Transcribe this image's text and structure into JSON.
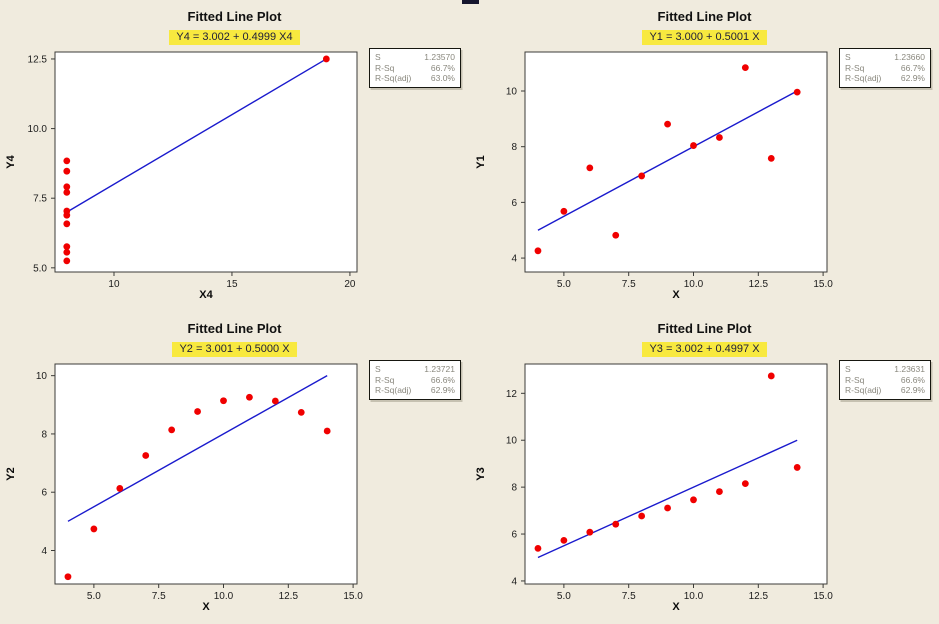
{
  "colors": {
    "background": "#F0EBDE",
    "plot_bg": "#FFFFFF",
    "frame": "#3B3B38",
    "point": "#F00000",
    "fit_line": "#1A1ACD",
    "equation_bg": "#F8E93F",
    "equation_text": "#20203A",
    "stats_text": "#8A887E",
    "title_text": "#111111"
  },
  "chart_data": [
    {
      "type": "scatter",
      "title": "Fitted Line Plot",
      "equation": "Y4 = 3.002 + 0.4999 X4",
      "xlabel": "X4",
      "ylabel": "Y4",
      "x": [
        8,
        8,
        8,
        8,
        8,
        8,
        8,
        19,
        8,
        8,
        8
      ],
      "y": [
        6.58,
        5.76,
        7.71,
        8.84,
        8.47,
        7.04,
        5.25,
        12.5,
        5.56,
        7.91,
        6.89
      ],
      "fit": {
        "intercept": 3.002,
        "slope": 0.4999,
        "x1": 8,
        "x2": 19
      },
      "xlim": [
        7.5,
        20.3
      ],
      "ylim": [
        4.85,
        12.75
      ],
      "xticks": [
        {
          "v": 10,
          "label": "10"
        },
        {
          "v": 15,
          "label": "15"
        },
        {
          "v": 20,
          "label": "20"
        }
      ],
      "yticks": [
        {
          "v": 5,
          "label": "5.0"
        },
        {
          "v": 7.5,
          "label": "7.5"
        },
        {
          "v": 10,
          "label": "10.0"
        },
        {
          "v": 12.5,
          "label": "12.5"
        }
      ],
      "legend": "none",
      "grid": false,
      "stats": [
        {
          "label": "S",
          "value": "1.23570"
        },
        {
          "label": "R-Sq",
          "value": "66.7%"
        },
        {
          "label": "R-Sq(adj)",
          "value": "63.0%"
        }
      ]
    },
    {
      "type": "scatter",
      "title": "Fitted Line Plot",
      "equation": "Y1 = 3.000 + 0.5001 X",
      "xlabel": "X",
      "ylabel": "Y1",
      "x": [
        10,
        8,
        13,
        9,
        11,
        14,
        6,
        4,
        12,
        7,
        5
      ],
      "y": [
        8.04,
        6.95,
        7.58,
        8.81,
        8.33,
        9.96,
        7.24,
        4.26,
        10.84,
        4.82,
        5.68
      ],
      "fit": {
        "intercept": 3.0,
        "slope": 0.5001,
        "x1": 4,
        "x2": 14
      },
      "xlim": [
        3.5,
        15.15
      ],
      "ylim": [
        3.5,
        11.4
      ],
      "xticks": [
        {
          "v": 5,
          "label": "5.0"
        },
        {
          "v": 7.5,
          "label": "7.5"
        },
        {
          "v": 10,
          "label": "10.0"
        },
        {
          "v": 12.5,
          "label": "12.5"
        },
        {
          "v": 15,
          "label": "15.0"
        }
      ],
      "yticks": [
        {
          "v": 4,
          "label": "4"
        },
        {
          "v": 6,
          "label": "6"
        },
        {
          "v": 8,
          "label": "8"
        },
        {
          "v": 10,
          "label": "10"
        }
      ],
      "legend": "none",
      "grid": false,
      "stats": [
        {
          "label": "S",
          "value": "1.23660"
        },
        {
          "label": "R-Sq",
          "value": "66.7%"
        },
        {
          "label": "R-Sq(adj)",
          "value": "62.9%"
        }
      ]
    },
    {
      "type": "scatter",
      "title": "Fitted Line Plot",
      "equation": "Y2 = 3.001 + 0.5000 X",
      "xlabel": "X",
      "ylabel": "Y2",
      "x": [
        10,
        8,
        13,
        9,
        11,
        14,
        6,
        4,
        12,
        7,
        5
      ],
      "y": [
        9.14,
        8.14,
        8.74,
        8.77,
        9.26,
        8.1,
        6.13,
        3.1,
        9.13,
        7.26,
        4.74
      ],
      "fit": {
        "intercept": 3.001,
        "slope": 0.5,
        "x1": 4,
        "x2": 14
      },
      "xlim": [
        3.5,
        15.15
      ],
      "ylim": [
        2.85,
        10.4
      ],
      "xticks": [
        {
          "v": 5,
          "label": "5.0"
        },
        {
          "v": 7.5,
          "label": "7.5"
        },
        {
          "v": 10,
          "label": "10.0"
        },
        {
          "v": 12.5,
          "label": "12.5"
        },
        {
          "v": 15,
          "label": "15.0"
        }
      ],
      "yticks": [
        {
          "v": 4,
          "label": "4"
        },
        {
          "v": 6,
          "label": "6"
        },
        {
          "v": 8,
          "label": "8"
        },
        {
          "v": 10,
          "label": "10"
        }
      ],
      "legend": "none",
      "grid": false,
      "stats": [
        {
          "label": "S",
          "value": "1.23721"
        },
        {
          "label": "R-Sq",
          "value": "66.6%"
        },
        {
          "label": "R-Sq(adj)",
          "value": "62.9%"
        }
      ]
    },
    {
      "type": "scatter",
      "title": "Fitted Line Plot",
      "equation": "Y3 = 3.002 + 0.4997 X",
      "xlabel": "X",
      "ylabel": "Y3",
      "x": [
        10,
        8,
        13,
        9,
        11,
        14,
        6,
        4,
        12,
        7,
        5
      ],
      "y": [
        7.46,
        6.77,
        12.74,
        7.11,
        7.81,
        8.84,
        6.08,
        5.39,
        8.15,
        6.42,
        5.73
      ],
      "fit": {
        "intercept": 3.002,
        "slope": 0.4997,
        "x1": 4,
        "x2": 14
      },
      "xlim": [
        3.5,
        15.15
      ],
      "ylim": [
        3.87,
        13.25
      ],
      "xticks": [
        {
          "v": 5,
          "label": "5.0"
        },
        {
          "v": 7.5,
          "label": "7.5"
        },
        {
          "v": 10,
          "label": "10.0"
        },
        {
          "v": 12.5,
          "label": "12.5"
        },
        {
          "v": 15,
          "label": "15.0"
        }
      ],
      "yticks": [
        {
          "v": 4,
          "label": "4"
        },
        {
          "v": 6,
          "label": "6"
        },
        {
          "v": 8,
          "label": "8"
        },
        {
          "v": 10,
          "label": "10"
        },
        {
          "v": 12,
          "label": "12"
        }
      ],
      "legend": "none",
      "grid": false,
      "stats": [
        {
          "label": "S",
          "value": "1.23631"
        },
        {
          "label": "R-Sq",
          "value": "66.6%"
        },
        {
          "label": "R-Sq(adj)",
          "value": "62.9%"
        }
      ]
    }
  ]
}
